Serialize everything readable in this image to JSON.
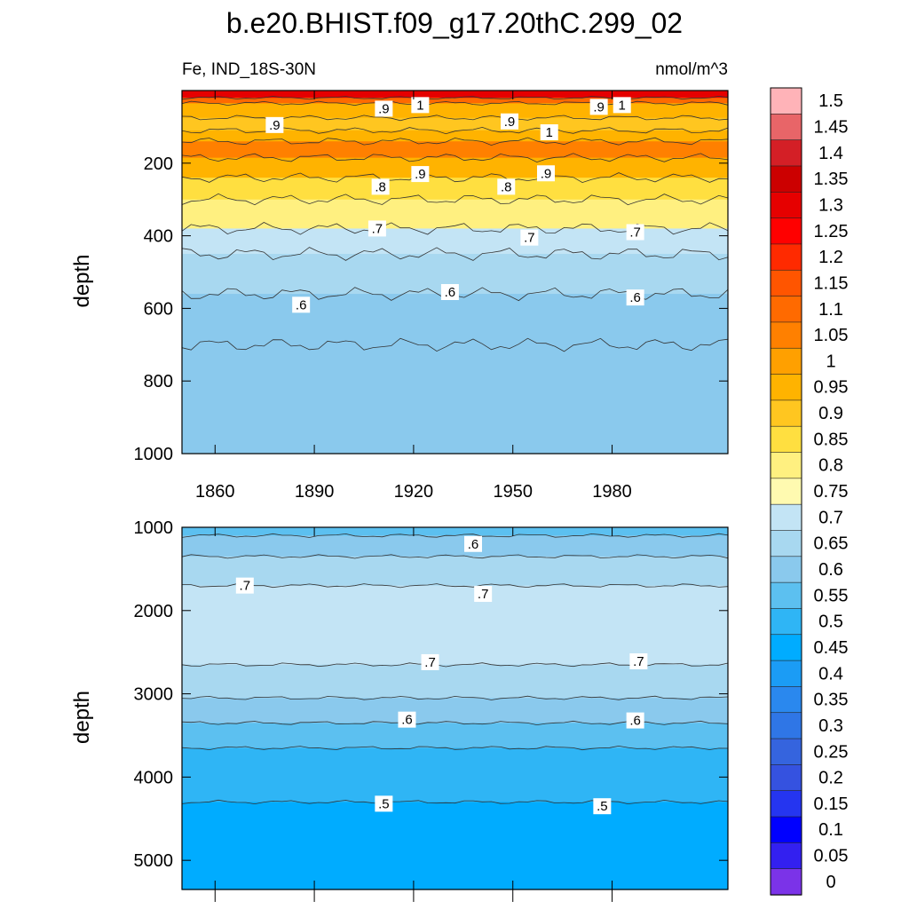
{
  "title": "b.e20.BHIST.f09_g17.20thC.299_02",
  "chart_data": {
    "type": "heatmap",
    "variable_label": "Fe, IND_18S-30N",
    "units": "nmol/m^3",
    "x_range": [
      1850,
      2015
    ],
    "x_ticks": [
      1860,
      1890,
      1920,
      1950,
      1980
    ],
    "panels": [
      {
        "ylabel": "depth",
        "y_range": [
          0,
          1000
        ],
        "y_ticks": [
          200,
          400,
          600,
          800,
          1000
        ],
        "bands": [
          {
            "depth": 0,
            "value": 1.3
          },
          {
            "depth": 20,
            "value": 1.1
          },
          {
            "depth": 35,
            "value": 0.95
          },
          {
            "depth": 75,
            "value": 0.9
          },
          {
            "depth": 110,
            "value": 0.95
          },
          {
            "depth": 140,
            "value": 1.05
          },
          {
            "depth": 185,
            "value": 0.95
          },
          {
            "depth": 240,
            "value": 0.87
          },
          {
            "depth": 300,
            "value": 0.78
          },
          {
            "depth": 380,
            "value": 0.72
          },
          {
            "depth": 450,
            "value": 0.67
          },
          {
            "depth": 560,
            "value": 0.62
          },
          {
            "depth": 700,
            "value": 0.58
          },
          {
            "depth": 1000,
            "value": 0.57
          }
        ],
        "contour_labels": [
          {
            "x": 1878,
            "depth": 95,
            "text": ".9"
          },
          {
            "x": 1911,
            "depth": 50,
            "text": ".9"
          },
          {
            "x": 1922,
            "depth": 40,
            "text": "1"
          },
          {
            "x": 1910,
            "depth": 265,
            "text": ".8"
          },
          {
            "x": 1922,
            "depth": 230,
            "text": ".9"
          },
          {
            "x": 1948,
            "depth": 265,
            "text": ".8"
          },
          {
            "x": 1960,
            "depth": 228,
            "text": ".9"
          },
          {
            "x": 1949,
            "depth": 85,
            "text": ".9"
          },
          {
            "x": 1961,
            "depth": 115,
            "text": "1"
          },
          {
            "x": 1976,
            "depth": 45,
            "text": ".9"
          },
          {
            "x": 1983,
            "depth": 40,
            "text": "1"
          },
          {
            "x": 1909,
            "depth": 380,
            "text": ".7"
          },
          {
            "x": 1955,
            "depth": 405,
            "text": ".7"
          },
          {
            "x": 1987,
            "depth": 390,
            "text": ".7"
          },
          {
            "x": 1886,
            "depth": 590,
            "text": ".6"
          },
          {
            "x": 1931,
            "depth": 555,
            "text": ".6"
          },
          {
            "x": 1987,
            "depth": 570,
            "text": ".6"
          }
        ]
      },
      {
        "ylabel": "depth",
        "y_range": [
          1000,
          5350
        ],
        "y_ticks": [
          1000,
          2000,
          3000,
          4000,
          5000
        ],
        "bands": [
          {
            "depth": 1000,
            "value": 0.57
          },
          {
            "depth": 1100,
            "value": 0.62
          },
          {
            "depth": 1350,
            "value": 0.67
          },
          {
            "depth": 1700,
            "value": 0.72
          },
          {
            "depth": 2650,
            "value": 0.67
          },
          {
            "depth": 3050,
            "value": 0.62
          },
          {
            "depth": 3350,
            "value": 0.57
          },
          {
            "depth": 3650,
            "value": 0.52
          },
          {
            "depth": 4300,
            "value": 0.47
          },
          {
            "depth": 5350,
            "value": 0.47
          }
        ],
        "contour_labels": [
          {
            "x": 1938,
            "depth": 1200,
            "text": ".6"
          },
          {
            "x": 1869,
            "depth": 1700,
            "text": ".7"
          },
          {
            "x": 1941,
            "depth": 1800,
            "text": ".7"
          },
          {
            "x": 1925,
            "depth": 2620,
            "text": ".7"
          },
          {
            "x": 1988,
            "depth": 2610,
            "text": ".7"
          },
          {
            "x": 1918,
            "depth": 3310,
            "text": ".6"
          },
          {
            "x": 1987,
            "depth": 3320,
            "text": ".6"
          },
          {
            "x": 1911,
            "depth": 4320,
            "text": ".5"
          },
          {
            "x": 1977,
            "depth": 4350,
            "text": ".5"
          }
        ]
      }
    ],
    "colorbar": {
      "labels": [
        "1.5",
        "1.45",
        "1.4",
        "1.35",
        "1.3",
        "1.25",
        "1.2",
        "1.15",
        "1.1",
        "1.05",
        "1",
        "0.95",
        "0.9",
        "0.85",
        "0.8",
        "0.75",
        "0.7",
        "0.65",
        "0.6",
        "0.55",
        "0.5",
        "0.45",
        "0.4",
        "0.35",
        "0.3",
        "0.25",
        "0.2",
        "0.15",
        "0.1",
        "0.05",
        "0"
      ],
      "colors": [
        "#ffb3b8",
        "#e86568",
        "#d41f26",
        "#cc0000",
        "#e60000",
        "#ff0000",
        "#ff2a00",
        "#ff5500",
        "#ff6a00",
        "#ff8000",
        "#ffa000",
        "#ffb300",
        "#ffc620",
        "#ffdf40",
        "#fff080",
        "#fffab0",
        "#c3e4f5",
        "#a8d8f0",
        "#8ac9ed",
        "#5cc0f0",
        "#2fb5f5",
        "#00acff",
        "#1b9cf5",
        "#2a88ee",
        "#2f76e6",
        "#3564de",
        "#3552e0",
        "#2535f0",
        "#0000ff",
        "#3320f0",
        "#7b33e8"
      ]
    }
  }
}
